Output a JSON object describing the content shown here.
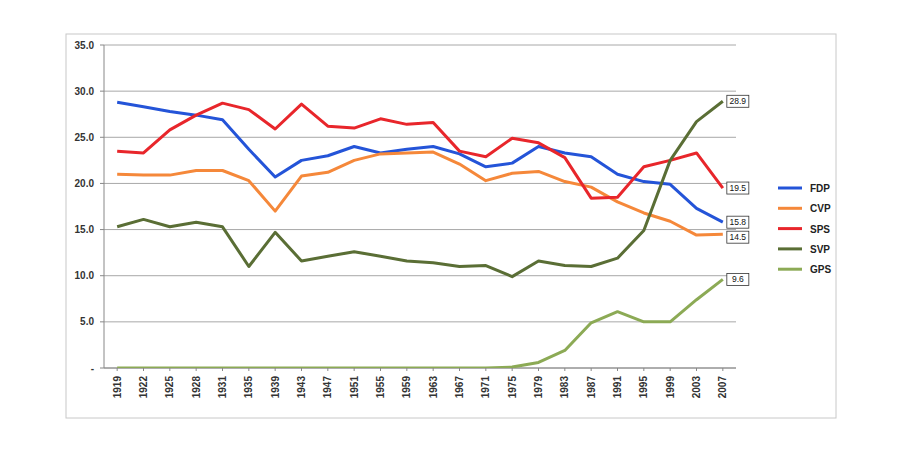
{
  "chart_data": {
    "type": "line",
    "categories": [
      "1919",
      "1922",
      "1925",
      "1928",
      "1931",
      "1935",
      "1939",
      "1943",
      "1947",
      "1951",
      "1955",
      "1959",
      "1963",
      "1967",
      "1971",
      "1975",
      "1979",
      "1983",
      "1987",
      "1991",
      "1995",
      "1999",
      "2003",
      "2007"
    ],
    "series": [
      {
        "name": "FDP",
        "color": "#2454d8",
        "end_label": "15.8",
        "values": [
          28.8,
          28.3,
          27.8,
          27.4,
          26.9,
          23.7,
          20.7,
          22.5,
          23.0,
          24.0,
          23.3,
          23.7,
          24.0,
          23.2,
          21.8,
          22.2,
          24.0,
          23.3,
          22.9,
          21.0,
          20.2,
          19.9,
          17.3,
          15.8
        ]
      },
      {
        "name": "CVP",
        "color": "#f5883a",
        "end_label": "14.5",
        "values": [
          21.0,
          20.9,
          20.9,
          21.4,
          21.4,
          20.3,
          17.0,
          20.8,
          21.2,
          22.5,
          23.2,
          23.3,
          23.4,
          22.1,
          20.3,
          21.1,
          21.3,
          20.2,
          19.6,
          18.0,
          16.8,
          15.9,
          14.4,
          14.5
        ]
      },
      {
        "name": "SPS",
        "color": "#e8262b",
        "end_label": "19.5",
        "values": [
          23.5,
          23.3,
          25.8,
          27.4,
          28.7,
          28.0,
          25.9,
          28.6,
          26.2,
          26.0,
          27.0,
          26.4,
          26.6,
          23.5,
          22.9,
          24.9,
          24.4,
          22.8,
          18.4,
          18.5,
          21.8,
          22.5,
          23.3,
          19.5
        ]
      },
      {
        "name": "SVP",
        "color": "#5a6e35",
        "end_label": "28.9",
        "values": [
          15.3,
          16.1,
          15.3,
          15.8,
          15.3,
          11.0,
          14.7,
          11.6,
          12.1,
          12.6,
          12.1,
          11.6,
          11.4,
          11.0,
          11.1,
          9.9,
          11.6,
          11.1,
          11.0,
          11.9,
          14.9,
          22.5,
          26.7,
          28.9
        ]
      },
      {
        "name": "GPS",
        "color": "#8caa55",
        "end_label": "9.6",
        "values": [
          0,
          0,
          0,
          0,
          0,
          0,
          0,
          0,
          0,
          0,
          0,
          0,
          0,
          0,
          0,
          0.1,
          0.6,
          1.9,
          4.9,
          6.1,
          5.0,
          5.0,
          7.4,
          9.6
        ]
      }
    ],
    "ylim": [
      0,
      35
    ],
    "yticks": [
      {
        "value": 0,
        "label": "-"
      },
      {
        "value": 5,
        "label": "5.0"
      },
      {
        "value": 10,
        "label": "10.0"
      },
      {
        "value": 15,
        "label": "15.0"
      },
      {
        "value": 20,
        "label": "20.0"
      },
      {
        "value": 25,
        "label": "25.0"
      },
      {
        "value": 30,
        "label": "30.0"
      },
      {
        "value": 35,
        "label": "35.0"
      }
    ],
    "grid": true,
    "legend": "right"
  }
}
